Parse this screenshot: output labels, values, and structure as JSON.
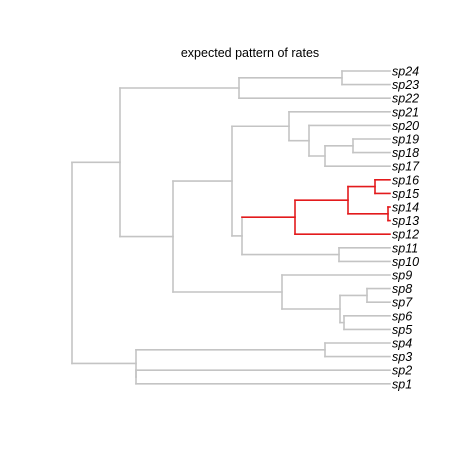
{
  "title": "expected pattern of rates",
  "colors": {
    "background": "#ffffff",
    "branch_default": "#c4c4c4",
    "branch_highlight": "#e31a1c",
    "text": "#000000"
  },
  "tree": {
    "tips": [
      "sp24",
      "sp23",
      "sp22",
      "sp21",
      "sp20",
      "sp19",
      "sp18",
      "sp17",
      "sp16",
      "sp15",
      "sp14",
      "sp13",
      "sp12",
      "sp11",
      "sp10",
      "sp9",
      "sp8",
      "sp7",
      "sp6",
      "sp5",
      "sp4",
      "sp3",
      "sp2",
      "sp1"
    ],
    "highlighted_clade": [
      "sp16",
      "sp15",
      "sp14",
      "sp13",
      "sp12"
    ]
  }
}
